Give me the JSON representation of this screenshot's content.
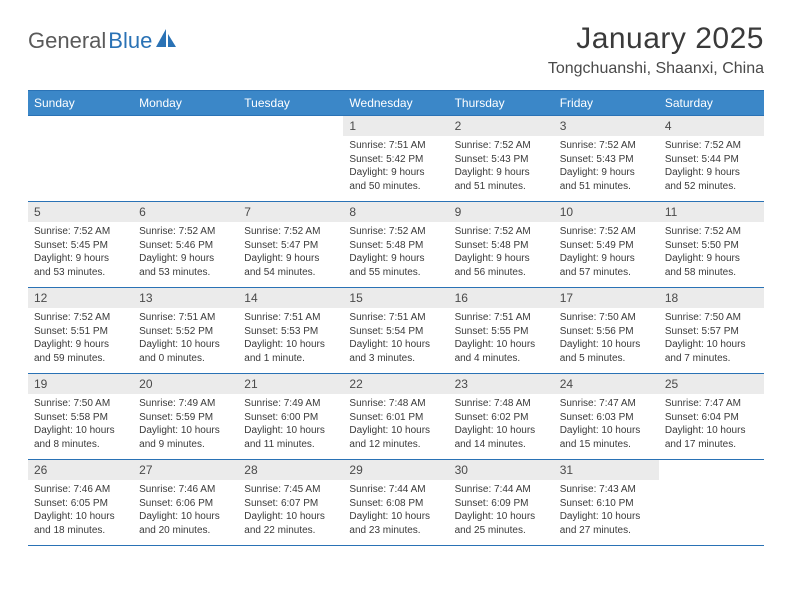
{
  "logo": {
    "part1": "General",
    "part2": "Blue"
  },
  "title": "January 2025",
  "subtitle": "Tongchuanshi, Shaanxi, China",
  "colors": {
    "header_bg": "#3b87c8",
    "border": "#2a72b5",
    "daynum_bg": "#ebebeb",
    "text": "#3a3a3a",
    "logo_gray": "#5a5a5a",
    "logo_blue": "#2a72b5"
  },
  "day_headers": [
    "Sunday",
    "Monday",
    "Tuesday",
    "Wednesday",
    "Thursday",
    "Friday",
    "Saturday"
  ],
  "weeks": [
    [
      {
        "empty": true
      },
      {
        "empty": true
      },
      {
        "empty": true
      },
      {
        "num": "1",
        "sunrise": "7:51 AM",
        "sunset": "5:42 PM",
        "daylight": "9 hours and 50 minutes."
      },
      {
        "num": "2",
        "sunrise": "7:52 AM",
        "sunset": "5:43 PM",
        "daylight": "9 hours and 51 minutes."
      },
      {
        "num": "3",
        "sunrise": "7:52 AM",
        "sunset": "5:43 PM",
        "daylight": "9 hours and 51 minutes."
      },
      {
        "num": "4",
        "sunrise": "7:52 AM",
        "sunset": "5:44 PM",
        "daylight": "9 hours and 52 minutes."
      }
    ],
    [
      {
        "num": "5",
        "sunrise": "7:52 AM",
        "sunset": "5:45 PM",
        "daylight": "9 hours and 53 minutes."
      },
      {
        "num": "6",
        "sunrise": "7:52 AM",
        "sunset": "5:46 PM",
        "daylight": "9 hours and 53 minutes."
      },
      {
        "num": "7",
        "sunrise": "7:52 AM",
        "sunset": "5:47 PM",
        "daylight": "9 hours and 54 minutes."
      },
      {
        "num": "8",
        "sunrise": "7:52 AM",
        "sunset": "5:48 PM",
        "daylight": "9 hours and 55 minutes."
      },
      {
        "num": "9",
        "sunrise": "7:52 AM",
        "sunset": "5:48 PM",
        "daylight": "9 hours and 56 minutes."
      },
      {
        "num": "10",
        "sunrise": "7:52 AM",
        "sunset": "5:49 PM",
        "daylight": "9 hours and 57 minutes."
      },
      {
        "num": "11",
        "sunrise": "7:52 AM",
        "sunset": "5:50 PM",
        "daylight": "9 hours and 58 minutes."
      }
    ],
    [
      {
        "num": "12",
        "sunrise": "7:52 AM",
        "sunset": "5:51 PM",
        "daylight": "9 hours and 59 minutes."
      },
      {
        "num": "13",
        "sunrise": "7:51 AM",
        "sunset": "5:52 PM",
        "daylight": "10 hours and 0 minutes."
      },
      {
        "num": "14",
        "sunrise": "7:51 AM",
        "sunset": "5:53 PM",
        "daylight": "10 hours and 1 minute."
      },
      {
        "num": "15",
        "sunrise": "7:51 AM",
        "sunset": "5:54 PM",
        "daylight": "10 hours and 3 minutes."
      },
      {
        "num": "16",
        "sunrise": "7:51 AM",
        "sunset": "5:55 PM",
        "daylight": "10 hours and 4 minutes."
      },
      {
        "num": "17",
        "sunrise": "7:50 AM",
        "sunset": "5:56 PM",
        "daylight": "10 hours and 5 minutes."
      },
      {
        "num": "18",
        "sunrise": "7:50 AM",
        "sunset": "5:57 PM",
        "daylight": "10 hours and 7 minutes."
      }
    ],
    [
      {
        "num": "19",
        "sunrise": "7:50 AM",
        "sunset": "5:58 PM",
        "daylight": "10 hours and 8 minutes."
      },
      {
        "num": "20",
        "sunrise": "7:49 AM",
        "sunset": "5:59 PM",
        "daylight": "10 hours and 9 minutes."
      },
      {
        "num": "21",
        "sunrise": "7:49 AM",
        "sunset": "6:00 PM",
        "daylight": "10 hours and 11 minutes."
      },
      {
        "num": "22",
        "sunrise": "7:48 AM",
        "sunset": "6:01 PM",
        "daylight": "10 hours and 12 minutes."
      },
      {
        "num": "23",
        "sunrise": "7:48 AM",
        "sunset": "6:02 PM",
        "daylight": "10 hours and 14 minutes."
      },
      {
        "num": "24",
        "sunrise": "7:47 AM",
        "sunset": "6:03 PM",
        "daylight": "10 hours and 15 minutes."
      },
      {
        "num": "25",
        "sunrise": "7:47 AM",
        "sunset": "6:04 PM",
        "daylight": "10 hours and 17 minutes."
      }
    ],
    [
      {
        "num": "26",
        "sunrise": "7:46 AM",
        "sunset": "6:05 PM",
        "daylight": "10 hours and 18 minutes."
      },
      {
        "num": "27",
        "sunrise": "7:46 AM",
        "sunset": "6:06 PM",
        "daylight": "10 hours and 20 minutes."
      },
      {
        "num": "28",
        "sunrise": "7:45 AM",
        "sunset": "6:07 PM",
        "daylight": "10 hours and 22 minutes."
      },
      {
        "num": "29",
        "sunrise": "7:44 AM",
        "sunset": "6:08 PM",
        "daylight": "10 hours and 23 minutes."
      },
      {
        "num": "30",
        "sunrise": "7:44 AM",
        "sunset": "6:09 PM",
        "daylight": "10 hours and 25 minutes."
      },
      {
        "num": "31",
        "sunrise": "7:43 AM",
        "sunset": "6:10 PM",
        "daylight": "10 hours and 27 minutes."
      },
      {
        "empty": true
      }
    ]
  ],
  "labels": {
    "sunrise": "Sunrise: ",
    "sunset": "Sunset: ",
    "daylight": "Daylight: "
  }
}
